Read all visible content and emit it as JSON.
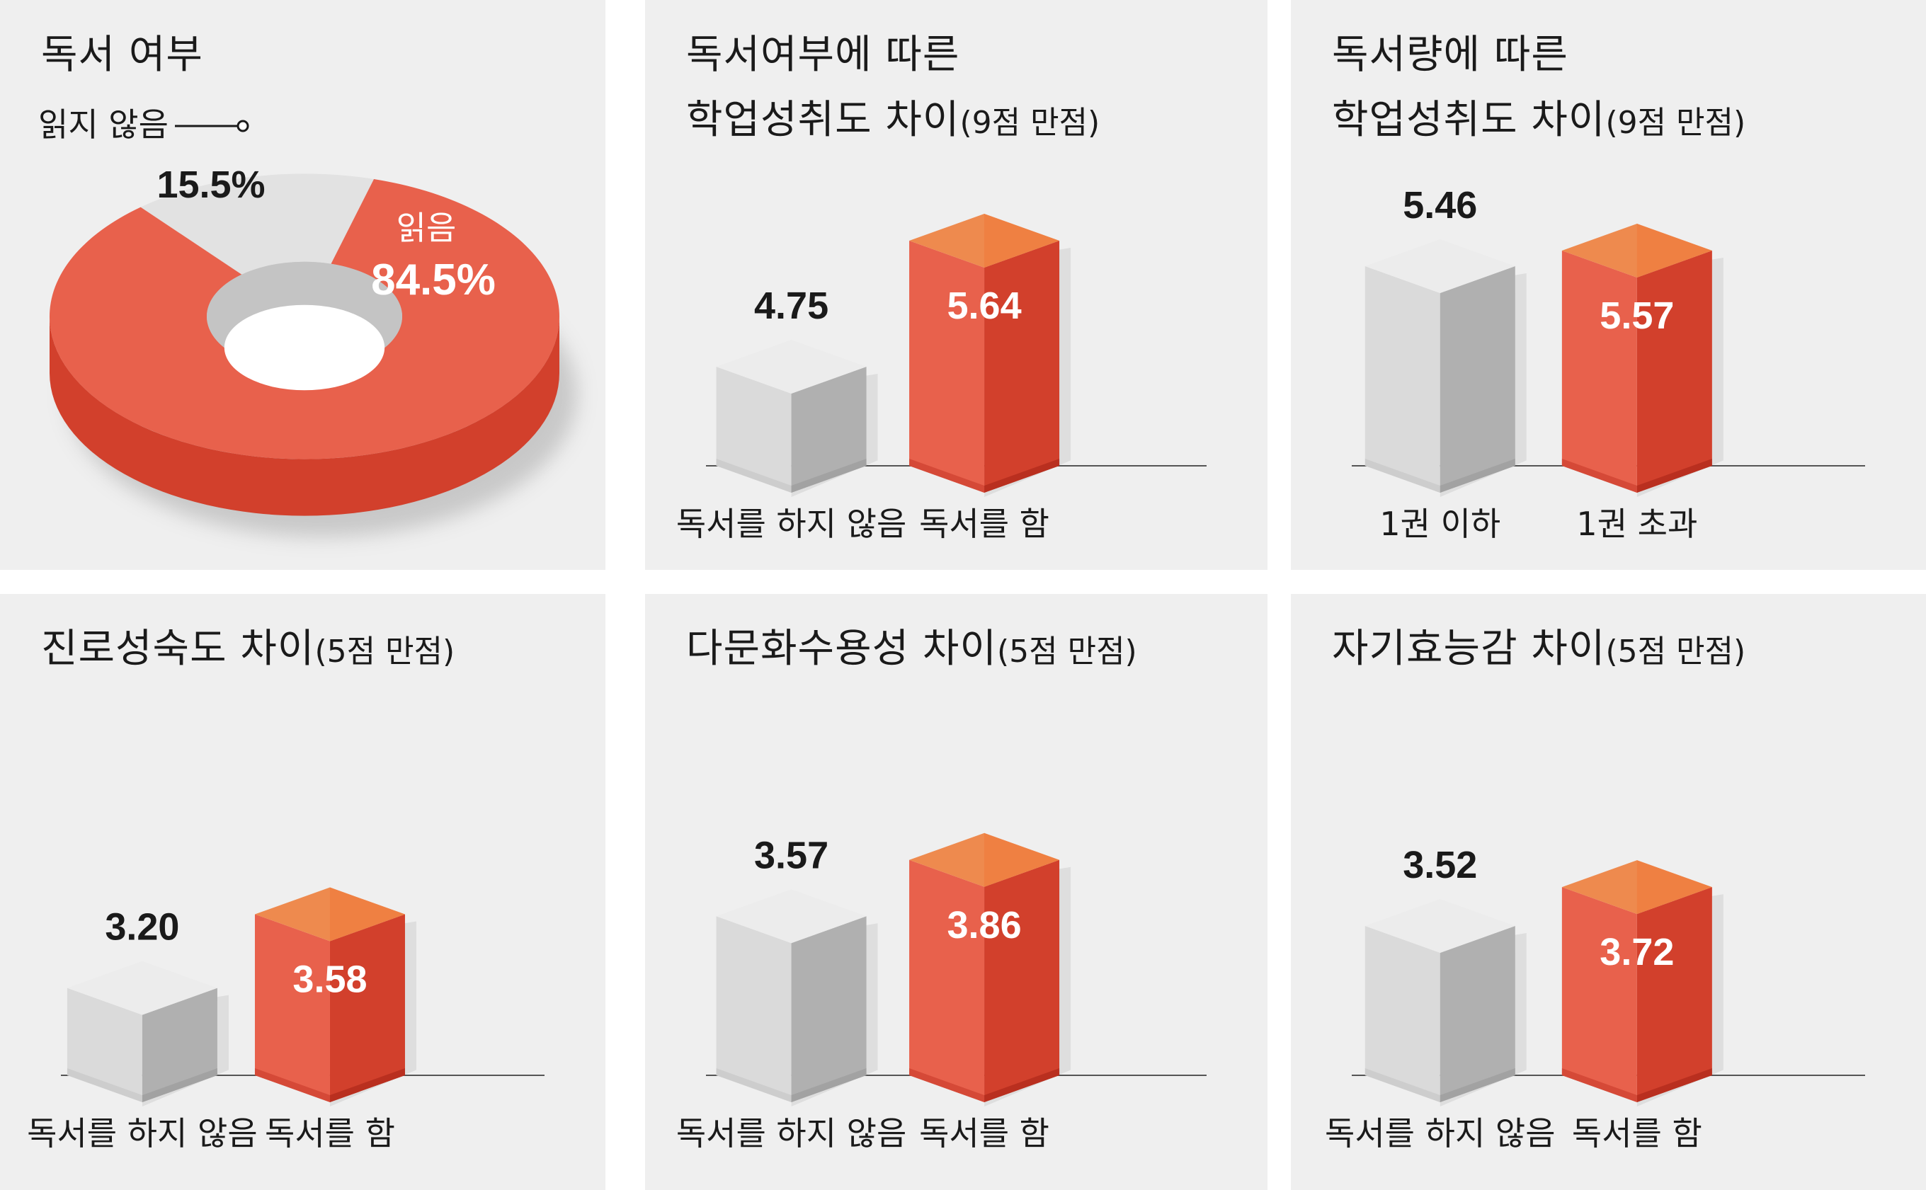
{
  "chart_data": [
    {
      "type": "pie",
      "title": "독서 여부",
      "slices": [
        {
          "label": "읽지 않음",
          "value": 15.5,
          "value_label": "15.5%",
          "color": "#e2e2e2"
        },
        {
          "label": "읽음",
          "value": 84.5,
          "value_label": "84.5%",
          "color": "#e8614c"
        }
      ]
    },
    {
      "type": "bar",
      "title": [
        "독서여부에 따른",
        "학업성취도 차이"
      ],
      "subtitle": "(9점 만점)",
      "categories": [
        "독서를 하지 않음",
        "독서를 함"
      ],
      "values": [
        4.75,
        5.64
      ],
      "value_labels": [
        "4.75",
        "5.64"
      ]
    },
    {
      "type": "bar",
      "title": [
        "독서량에 따른",
        "학업성취도 차이"
      ],
      "subtitle": "(9점 만점)",
      "categories": [
        "1권 이하",
        "1권 초과"
      ],
      "values": [
        5.46,
        5.57
      ],
      "value_labels": [
        "5.46",
        "5.57"
      ]
    },
    {
      "type": "bar",
      "title": [
        "진로성숙도 차이"
      ],
      "subtitle": "(5점 만점)",
      "categories": [
        "독서를 하지 않음",
        "독서를 함"
      ],
      "values": [
        3.2,
        3.58
      ],
      "value_labels": [
        "3.20",
        "3.58"
      ]
    },
    {
      "type": "bar",
      "title": [
        "다문화수용성 차이"
      ],
      "subtitle": "(5점 만점)",
      "categories": [
        "독서를 하지 않음",
        "독서를 함"
      ],
      "values": [
        3.57,
        3.86
      ],
      "value_labels": [
        "3.57",
        "3.86"
      ]
    },
    {
      "type": "bar",
      "title": [
        "자기효능감 차이"
      ],
      "subtitle": "(5점 만점)",
      "categories": [
        "독서를 하지 않음",
        "독서를 함"
      ],
      "values": [
        3.52,
        3.72
      ],
      "value_labels": [
        "3.52",
        "3.72"
      ]
    }
  ],
  "colors": {
    "panel_bg": "#efefef",
    "red_front": "#e8614c",
    "red_side": "#d2402c",
    "red_top": "#ee8a4e",
    "grey_front": "#dadada",
    "grey_side": "#b0b0b0",
    "grey_top": "#ececec"
  }
}
